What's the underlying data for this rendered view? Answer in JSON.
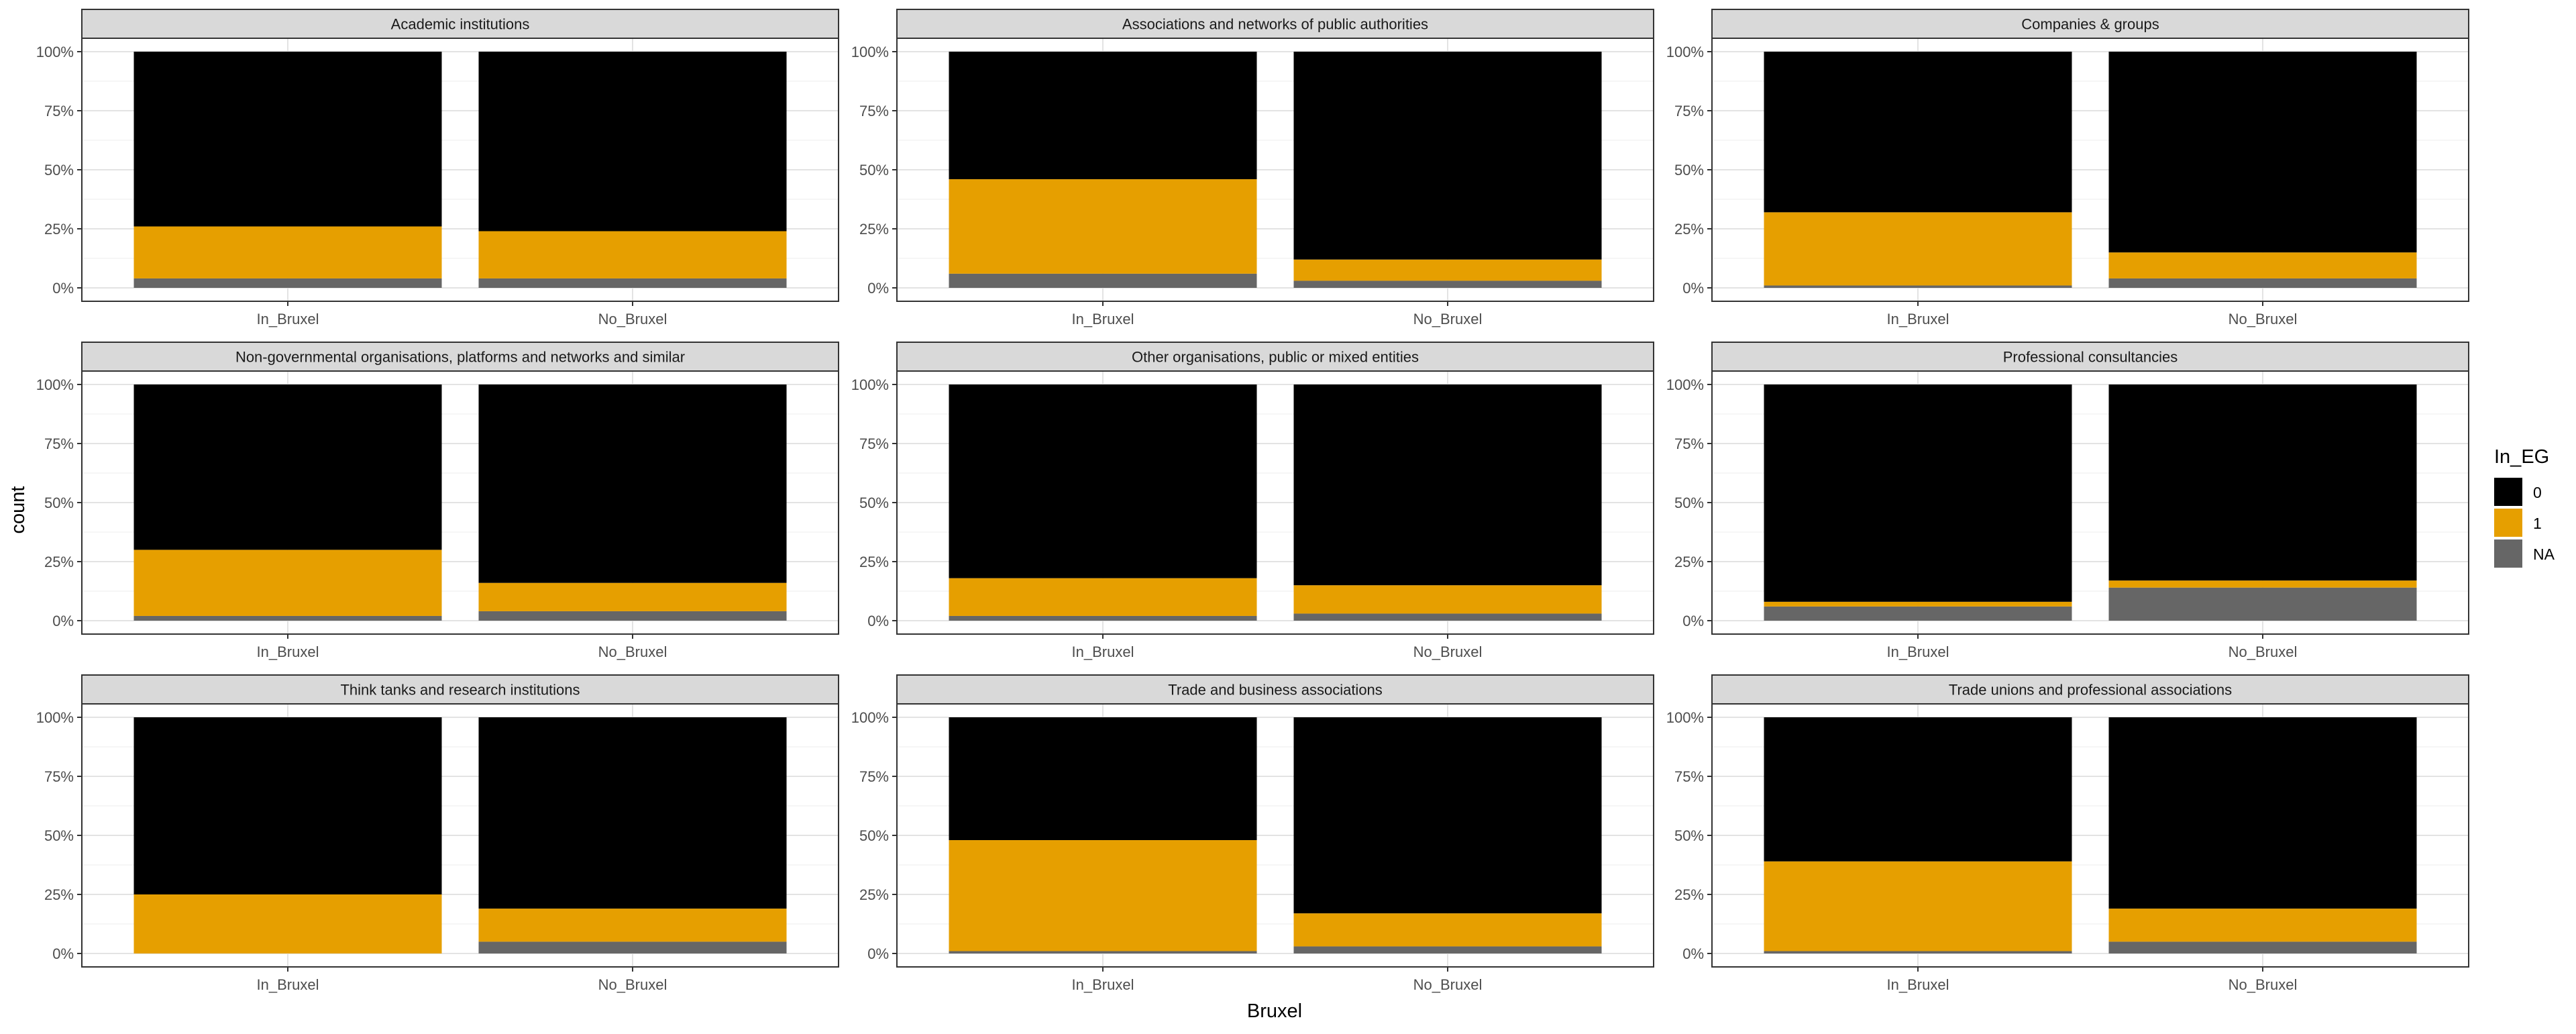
{
  "chart_data": {
    "type": "bar",
    "position": "fill",
    "xlabel": "Bruxel",
    "ylabel": "count",
    "y_tick_labels": [
      "0%",
      "25%",
      "50%",
      "75%",
      "100%"
    ],
    "y_ticks": [
      0,
      0.25,
      0.5,
      0.75,
      1.0
    ],
    "ylim": [
      0,
      1
    ],
    "grid": true,
    "legend": {
      "title": "In_EG",
      "placement": "right",
      "entries": [
        {
          "label": "0",
          "color": "#000000"
        },
        {
          "label": "1",
          "color": "#E69F00"
        },
        {
          "label": "NA",
          "color": "#666666"
        }
      ]
    },
    "categories": [
      "In_Bruxel",
      "No_Bruxel"
    ],
    "stack_order": [
      "NA",
      "1",
      "0"
    ],
    "facets": [
      {
        "title": "Academic institutions",
        "bars": [
          {
            "category": "In_Bruxel",
            "segments": {
              "NA": 0.04,
              "1": 0.22,
              "0": 0.74
            }
          },
          {
            "category": "No_Bruxel",
            "segments": {
              "NA": 0.04,
              "1": 0.2,
              "0": 0.76
            }
          }
        ]
      },
      {
        "title": "Associations and networks of public authorities",
        "bars": [
          {
            "category": "In_Bruxel",
            "segments": {
              "NA": 0.06,
              "1": 0.4,
              "0": 0.54
            }
          },
          {
            "category": "No_Bruxel",
            "segments": {
              "NA": 0.03,
              "1": 0.09,
              "0": 0.88
            }
          }
        ]
      },
      {
        "title": "Companies & groups",
        "bars": [
          {
            "category": "In_Bruxel",
            "segments": {
              "NA": 0.01,
              "1": 0.31,
              "0": 0.68
            }
          },
          {
            "category": "No_Bruxel",
            "segments": {
              "NA": 0.04,
              "1": 0.11,
              "0": 0.85
            }
          }
        ]
      },
      {
        "title": "Non-governmental organisations, platforms and networks and similar",
        "bars": [
          {
            "category": "In_Bruxel",
            "segments": {
              "NA": 0.02,
              "1": 0.28,
              "0": 0.7
            }
          },
          {
            "category": "No_Bruxel",
            "segments": {
              "NA": 0.04,
              "1": 0.12,
              "0": 0.84
            }
          }
        ]
      },
      {
        "title": "Other organisations, public or mixed entities",
        "bars": [
          {
            "category": "In_Bruxel",
            "segments": {
              "NA": 0.02,
              "1": 0.16,
              "0": 0.82
            }
          },
          {
            "category": "No_Bruxel",
            "segments": {
              "NA": 0.03,
              "1": 0.12,
              "0": 0.85
            }
          }
        ]
      },
      {
        "title": "Professional consultancies",
        "bars": [
          {
            "category": "In_Bruxel",
            "segments": {
              "NA": 0.06,
              "1": 0.02,
              "0": 0.92
            }
          },
          {
            "category": "No_Bruxel",
            "segments": {
              "NA": 0.14,
              "1": 0.03,
              "0": 0.83
            }
          }
        ]
      },
      {
        "title": "Think tanks and research institutions",
        "bars": [
          {
            "category": "In_Bruxel",
            "segments": {
              "NA": 0.0,
              "1": 0.25,
              "0": 0.75
            }
          },
          {
            "category": "No_Bruxel",
            "segments": {
              "NA": 0.05,
              "1": 0.14,
              "0": 0.81
            }
          }
        ]
      },
      {
        "title": "Trade and business associations",
        "bars": [
          {
            "category": "In_Bruxel",
            "segments": {
              "NA": 0.01,
              "1": 0.47,
              "0": 0.52
            }
          },
          {
            "category": "No_Bruxel",
            "segments": {
              "NA": 0.03,
              "1": 0.14,
              "0": 0.83
            }
          }
        ]
      },
      {
        "title": "Trade unions and professional associations",
        "bars": [
          {
            "category": "In_Bruxel",
            "segments": {
              "NA": 0.01,
              "1": 0.38,
              "0": 0.61
            }
          },
          {
            "category": "No_Bruxel",
            "segments": {
              "NA": 0.05,
              "1": 0.14,
              "0": 0.81
            }
          }
        ]
      }
    ]
  }
}
